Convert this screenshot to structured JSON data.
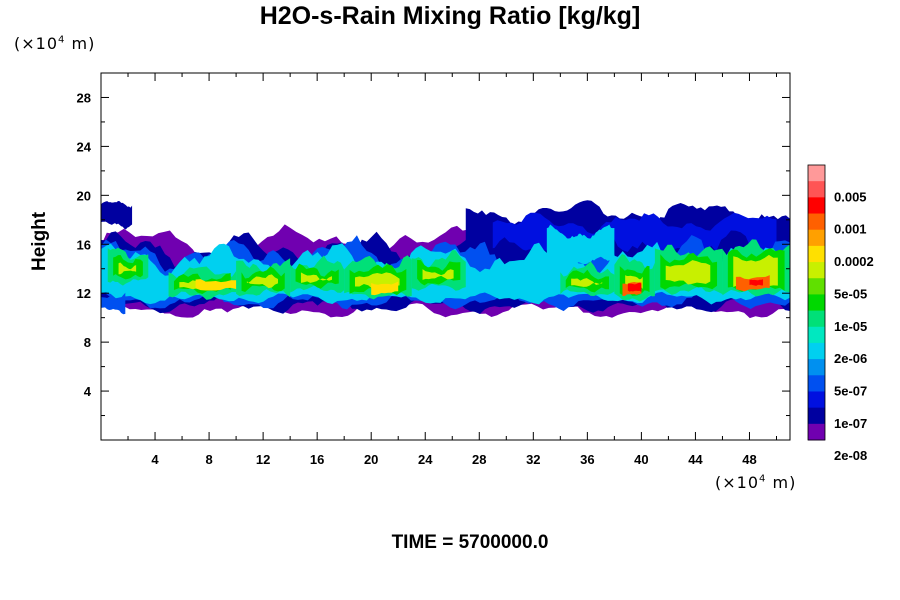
{
  "title": "H2O-s-Rain Mixing Ratio [kg/kg]",
  "y_unit": {
    "prefix": "(×10",
    "exp": "4",
    "suffix": " m)"
  },
  "x_unit": {
    "prefix": "(×10",
    "exp": "4",
    "suffix": " m)"
  },
  "time_label": "TIME = 5700000.0",
  "chart_data": {
    "type": "heatmap",
    "title": "H2O-s-Rain Mixing Ratio [kg/kg]",
    "ylabel": "Height",
    "xlabel": "",
    "x_unit_label": "(×10^4 m)",
    "y_unit_label": "(×10^4 m)",
    "xlim": [
      0,
      51
    ],
    "ylim": [
      0,
      30
    ],
    "x_ticks": [
      "4",
      "8",
      "12",
      "16",
      "20",
      "24",
      "28",
      "32",
      "36",
      "40",
      "44",
      "48"
    ],
    "y_ticks": [
      "4",
      "8",
      "12",
      "16",
      "20",
      "24",
      "28"
    ],
    "colorbar": {
      "labels": [
        "0.005",
        "0.001",
        "0.0002",
        "5e-05",
        "1e-05",
        "2e-06",
        "5e-07",
        "1e-07",
        "2e-08"
      ],
      "colors": [
        "#ff9999",
        "#ff5555",
        "#ff0000",
        "#ff6000",
        "#ffa000",
        "#ffe000",
        "#c8f000",
        "#60e000",
        "#00d800",
        "#00e078",
        "#00e8c0",
        "#00d0f0",
        "#0090f0",
        "#0050f0",
        "#0010e0",
        "#0000a0",
        "#7000b0"
      ]
    },
    "annotation": "TIME = 5700000.0",
    "field_description_layers": [
      {
        "level": "2e-08 to 1e-07",
        "color": "#0000a0",
        "x_range": [
          0,
          51
        ],
        "y_range": [
          10.5,
          20
        ]
      },
      {
        "level": "5e-07 to 2e-06",
        "color": "#00d0f0",
        "x_range": [
          0,
          51
        ],
        "y_range": [
          11,
          17
        ]
      },
      {
        "level": "1e-05 to 5e-05",
        "color": "#60e000",
        "x_range": [
          0,
          51
        ],
        "y_range": [
          11.5,
          16
        ]
      },
      {
        "level": "0.0002 to 0.001",
        "color": "#ff6000",
        "x_range": [
          38,
          49
        ],
        "y_range": [
          11.5,
          13
        ]
      }
    ]
  }
}
